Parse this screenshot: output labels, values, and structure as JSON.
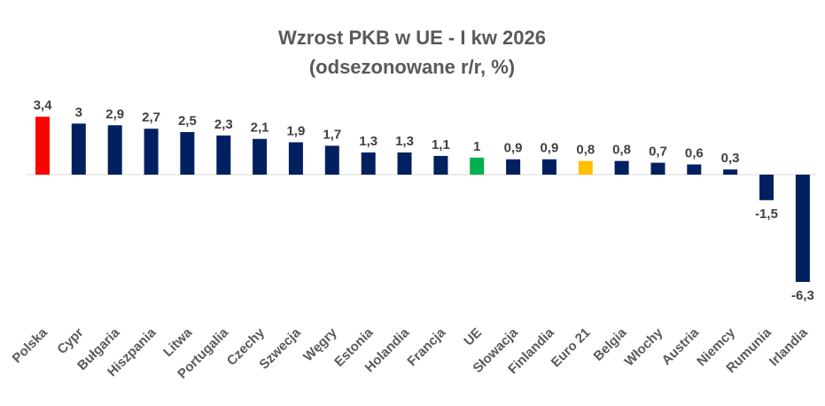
{
  "chart_data": {
    "type": "bar",
    "title": "Wzrost PKB w UE - I kw 2026",
    "subtitle": "(odsezonowane r/r, %)",
    "categories": [
      "Polska",
      "Cypr",
      "Bułgaria",
      "Hiszpania",
      "Litwa",
      "Portugalia",
      "Czechy",
      "Szwecja",
      "Węgry",
      "Estonia",
      "Holandia",
      "Francja",
      "UE",
      "Słowacja",
      "Finlandia",
      "Euro 21",
      "Belgia",
      "Włochy",
      "Austria",
      "Niemcy",
      "Rumunia",
      "Irlandia"
    ],
    "values": [
      3.4,
      3,
      2.9,
      2.7,
      2.5,
      2.3,
      2.1,
      1.9,
      1.7,
      1.3,
      1.3,
      1.1,
      1,
      0.9,
      0.9,
      0.8,
      0.8,
      0.7,
      0.6,
      0.3,
      -1.5,
      -6.3
    ],
    "value_labels": [
      "3,4",
      "3",
      "2,9",
      "2,7",
      "2,5",
      "2,3",
      "2,1",
      "1,9",
      "1,7",
      "1,3",
      "1,3",
      "1,1",
      "1",
      "0,9",
      "0,9",
      "0,8",
      "0,8",
      "0,7",
      "0,6",
      "0,3",
      "-1,5",
      "-6,3"
    ],
    "colors": {
      "default": "#002060",
      "Polska": "#ff0000",
      "UE": "#00b050",
      "Euro 21": "#ffc000",
      "axis": "#d9d9d9"
    },
    "ylim": [
      -6.3,
      3.4
    ],
    "grid": false,
    "legend": "none"
  }
}
